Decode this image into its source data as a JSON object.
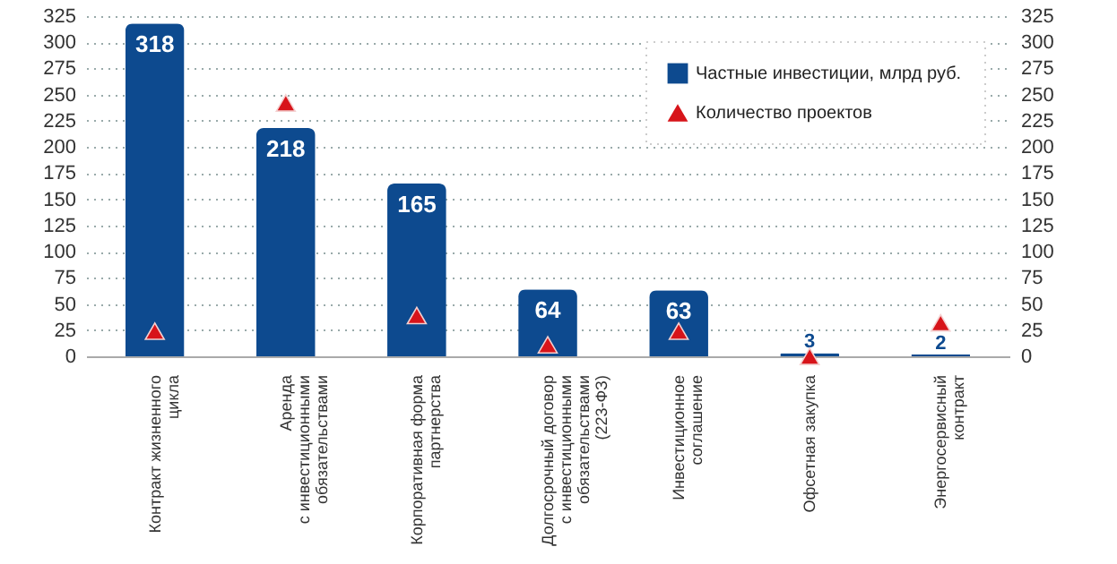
{
  "chart_data": {
    "type": "bar",
    "categories": [
      "Контракт жизненного\nцикла",
      "Аренда\nс инвестиционными\nобязательствами",
      "Корпоративная форма\nпартнерства",
      "Долгосрочный договор\nс инвестиционными\nобязательствами\n(223-ФЗ)",
      "Инвестиционное\nсоглашение",
      "Офсетная закупка",
      "Энергосервисный\nконтракт"
    ],
    "series": [
      {
        "name": "Частные инвестиции, млрд руб.",
        "color": "#0d4a8f",
        "values": [
          318,
          218,
          165,
          64,
          63,
          3,
          2
        ],
        "data_labels": true
      },
      {
        "name": "Количество проектов",
        "type": "scatter",
        "axis": "y2",
        "marker": "triangle",
        "color": "#d7141a",
        "values": [
          24,
          242,
          39,
          11,
          24,
          0,
          32
        ]
      }
    ],
    "ylim": [
      0,
      325
    ],
    "yticks": [
      0,
      25,
      50,
      75,
      100,
      125,
      150,
      175,
      200,
      225,
      250,
      275,
      300,
      325
    ],
    "y2lim": [
      0,
      325
    ],
    "y2ticks": [
      0,
      25,
      50,
      75,
      100,
      125,
      150,
      175,
      200,
      225,
      250,
      275,
      300,
      325
    ],
    "grid": "y",
    "legend": "top right"
  }
}
